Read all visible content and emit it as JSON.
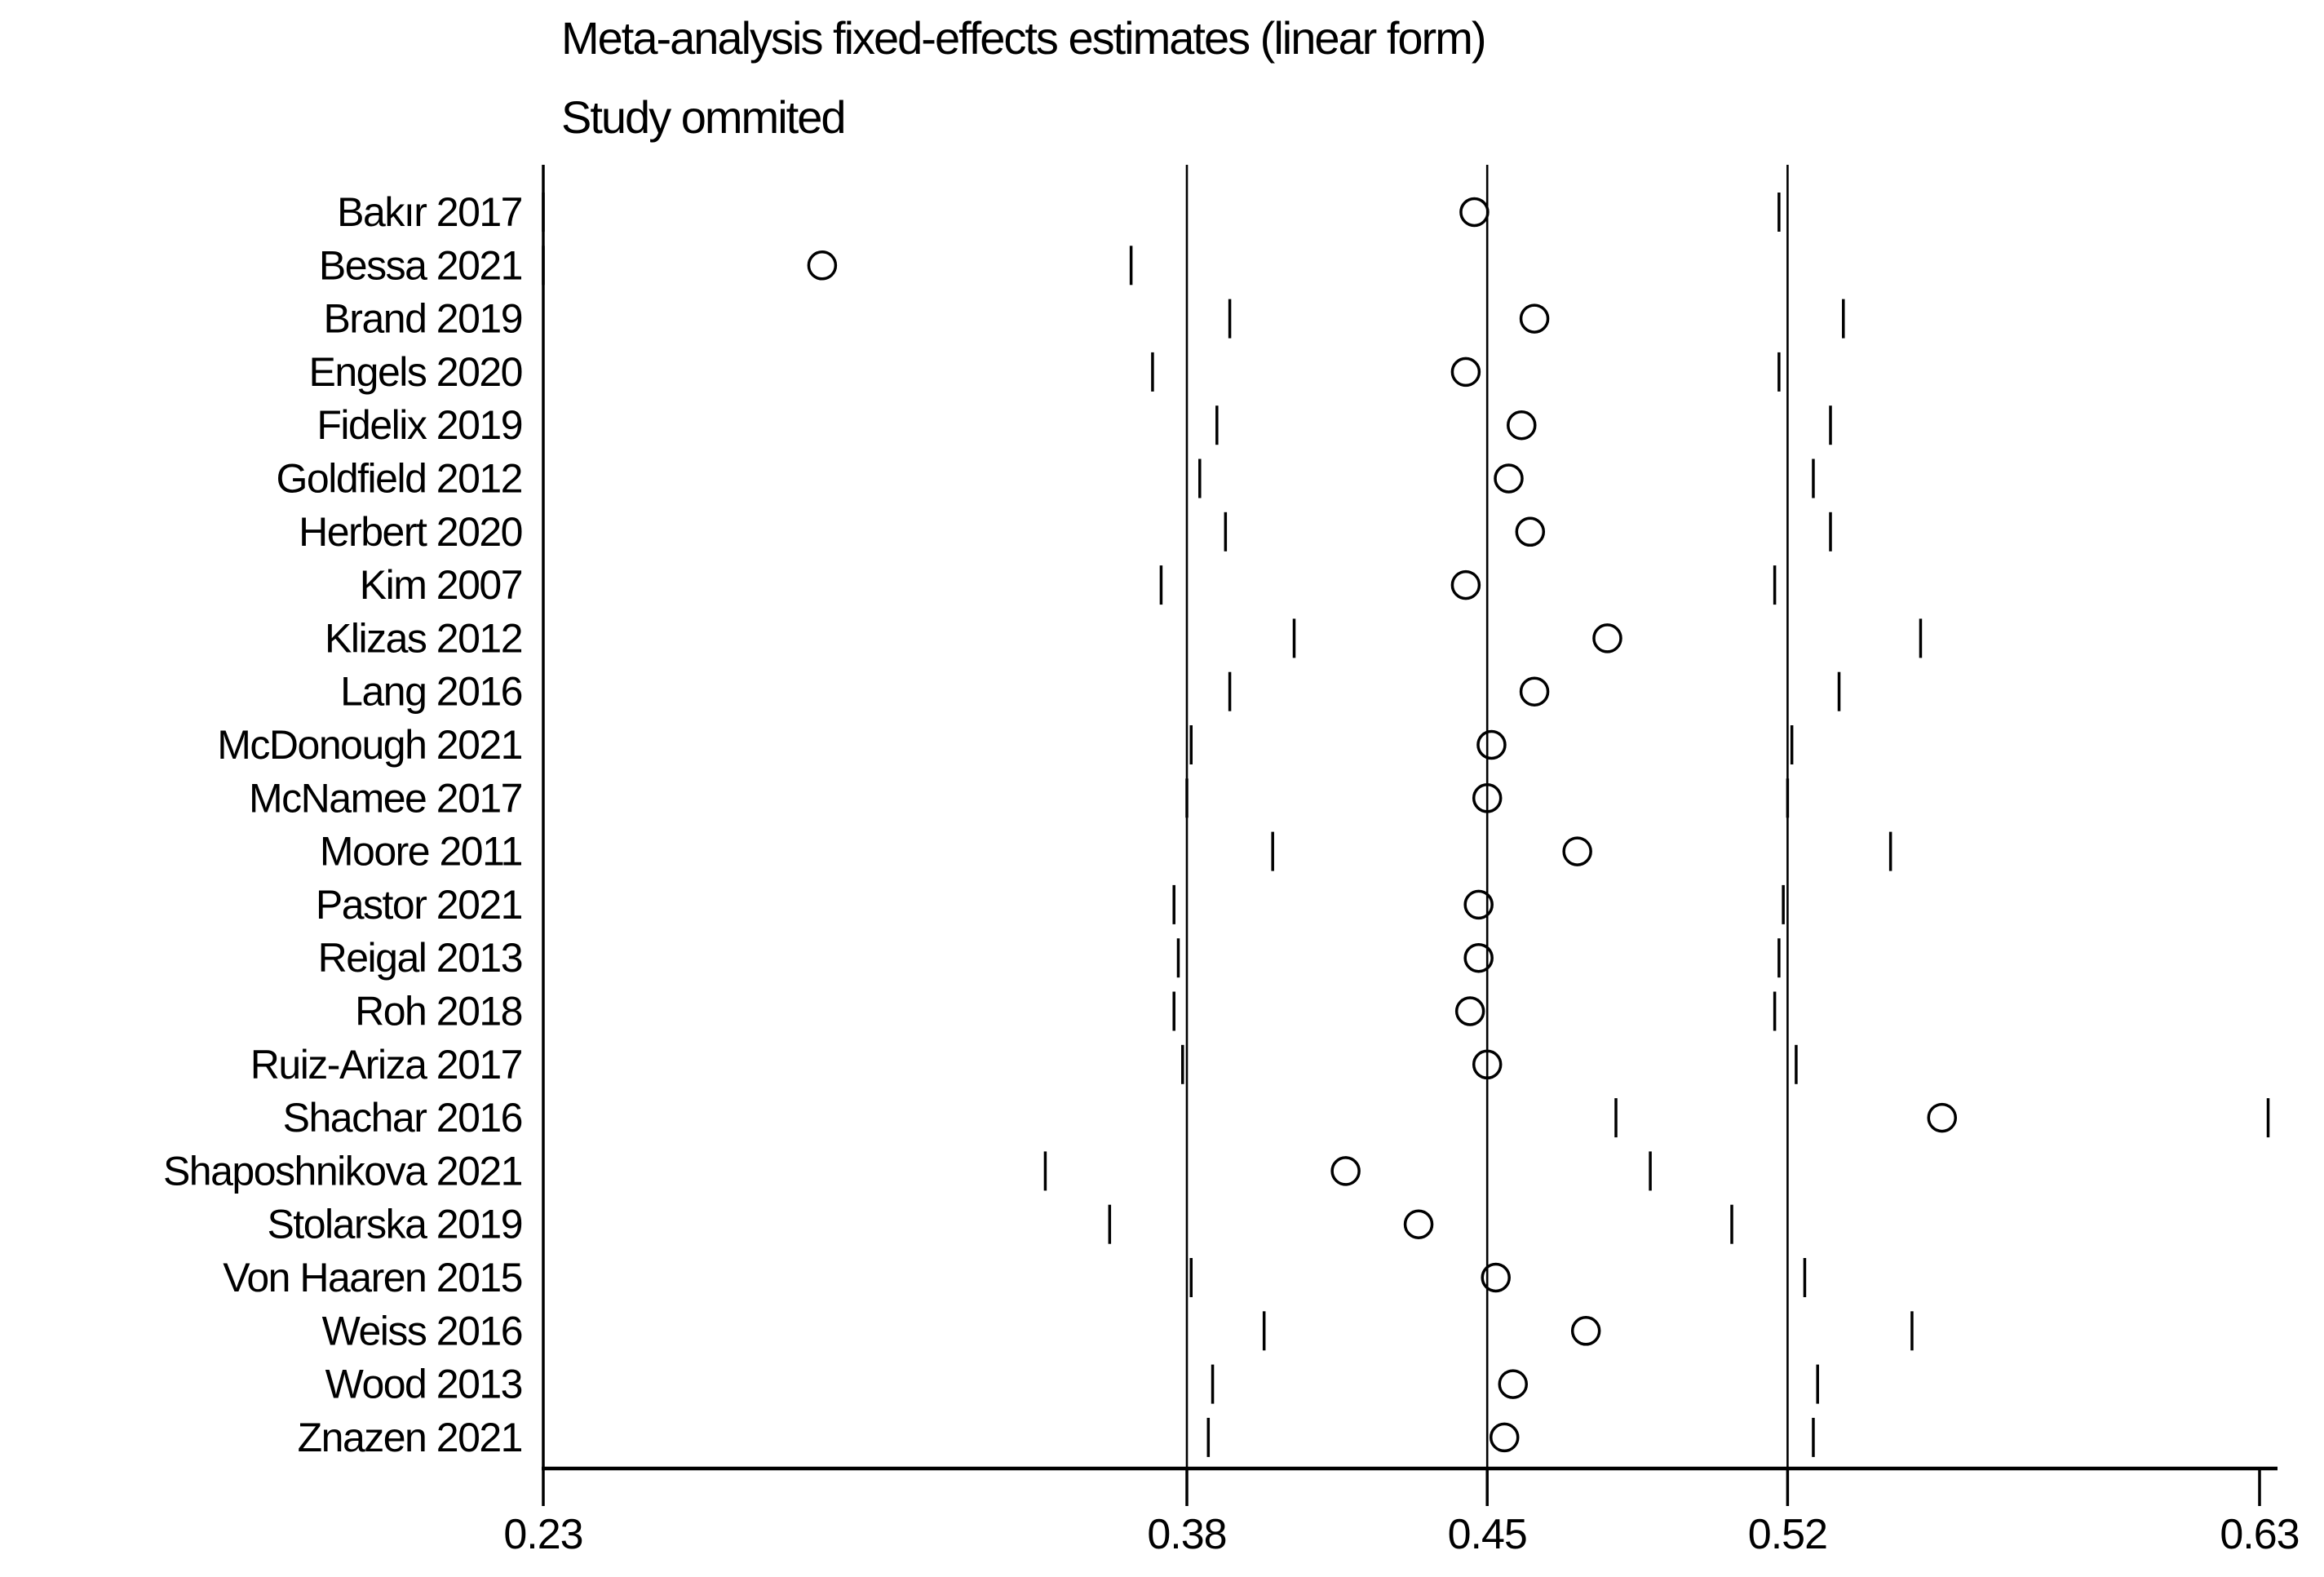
{
  "header": {
    "title": "Meta-analysis fixed-effects estimates (linear form)",
    "subtitle": "Study ommited"
  },
  "colors": {
    "foreground": "#000000",
    "background": "#ffffff"
  },
  "chart_data": {
    "type": "scatter",
    "variant": "leave-one-out-forest",
    "title": "Meta-analysis fixed-effects estimates (linear form)",
    "subtitle": "Study ommited",
    "xlabel": "",
    "ylabel": "",
    "grid": false,
    "legend": "none",
    "marker": "open-circle",
    "x_axis": {
      "min": 0.23,
      "max": 0.63,
      "ticks": [
        {
          "value": 0.23,
          "label": "0.23"
        },
        {
          "value": 0.38,
          "label": "0.38"
        },
        {
          "value": 0.45,
          "label": "0.45"
        },
        {
          "value": 0.52,
          "label": "0.52"
        },
        {
          "value": 0.63,
          "label": "0.63"
        }
      ]
    },
    "ref_lines": [
      {
        "value": 0.38,
        "role": "overall-lower-ci"
      },
      {
        "value": 0.45,
        "role": "overall-estimate"
      },
      {
        "value": 0.52,
        "role": "overall-upper-ci"
      }
    ],
    "studies": [
      {
        "label": "Bakır 2017",
        "estimate": 0.447,
        "lower": 0.23,
        "upper": 0.518
      },
      {
        "label": "Bessa 2021",
        "estimate": 0.295,
        "lower": 0.23,
        "upper": 0.367
      },
      {
        "label": "Brand 2019",
        "estimate": 0.461,
        "lower": 0.39,
        "upper": 0.533
      },
      {
        "label": "Engels 2020",
        "estimate": 0.445,
        "lower": 0.372,
        "upper": 0.518
      },
      {
        "label": "Fidelix 2019",
        "estimate": 0.458,
        "lower": 0.387,
        "upper": 0.53
      },
      {
        "label": "Goldfield 2012",
        "estimate": 0.455,
        "lower": 0.383,
        "upper": 0.526
      },
      {
        "label": "Herbert 2020",
        "estimate": 0.46,
        "lower": 0.389,
        "upper": 0.53
      },
      {
        "label": "Kim 2007",
        "estimate": 0.445,
        "lower": 0.374,
        "upper": 0.517
      },
      {
        "label": "Klizas 2012",
        "estimate": 0.478,
        "lower": 0.405,
        "upper": 0.551
      },
      {
        "label": "Lang 2016",
        "estimate": 0.461,
        "lower": 0.39,
        "upper": 0.532
      },
      {
        "label": "McDonough 2021",
        "estimate": 0.451,
        "lower": 0.381,
        "upper": 0.521
      },
      {
        "label": "McNamee 2017",
        "estimate": 0.45,
        "lower": 0.38,
        "upper": 0.52
      },
      {
        "label": "Moore 2011",
        "estimate": 0.471,
        "lower": 0.4,
        "upper": 0.544
      },
      {
        "label": "Pastor 2021",
        "estimate": 0.448,
        "lower": 0.377,
        "upper": 0.519
      },
      {
        "label": "Reigal 2013",
        "estimate": 0.448,
        "lower": 0.378,
        "upper": 0.518
      },
      {
        "label": "Roh 2018",
        "estimate": 0.446,
        "lower": 0.377,
        "upper": 0.517
      },
      {
        "label": "Ruiz-Ariza 2017",
        "estimate": 0.45,
        "lower": 0.379,
        "upper": 0.522
      },
      {
        "label": "Shachar 2016",
        "estimate": 0.556,
        "lower": 0.48,
        "upper": 0.632
      },
      {
        "label": "Shaposhnikova 2021",
        "estimate": 0.417,
        "lower": 0.347,
        "upper": 0.488
      },
      {
        "label": "Stolarska 2019",
        "estimate": 0.434,
        "lower": 0.362,
        "upper": 0.507
      },
      {
        "label": "Von Haaren 2015",
        "estimate": 0.452,
        "lower": 0.381,
        "upper": 0.524
      },
      {
        "label": "Weiss 2016",
        "estimate": 0.473,
        "lower": 0.398,
        "upper": 0.549
      },
      {
        "label": "Wood 2013",
        "estimate": 0.456,
        "lower": 0.386,
        "upper": 0.527
      },
      {
        "label": "Znazen 2021",
        "estimate": 0.454,
        "lower": 0.385,
        "upper": 0.526
      }
    ]
  }
}
